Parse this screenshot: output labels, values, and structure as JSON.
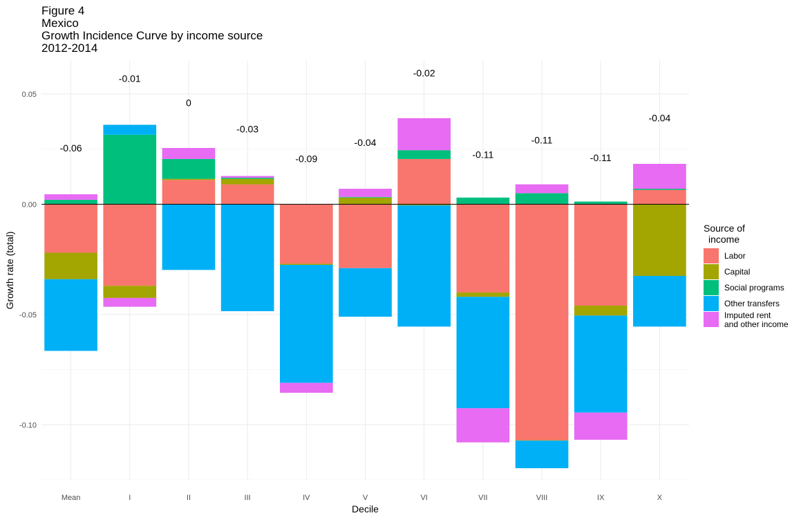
{
  "title_lines": [
    "Figure 4",
    "Mexico",
    "Growth Incidence Curve by income source",
    "2012-2014"
  ],
  "chart_data": {
    "type": "bar",
    "stacked": true,
    "categories": [
      "Mean",
      "I",
      "II",
      "III",
      "IV",
      "V",
      "VI",
      "VII",
      "VIII",
      "IX",
      "X"
    ],
    "xlabel": "Decile",
    "ylabel": "Growth rate (total)",
    "ylim": [
      -0.125,
      0.065
    ],
    "y_ticks": [
      -0.1,
      -0.05,
      0.0,
      0.05
    ],
    "y_tick_labels": [
      "-0.10",
      "-0.05",
      "0.00",
      "0.05"
    ],
    "grid": true,
    "legend": {
      "title": "Source of\nincome",
      "placement": "right"
    },
    "series": [
      {
        "name": "Labor",
        "color": "#F8766D",
        "values": [
          -0.022,
          -0.037,
          0.011,
          0.009,
          -0.027,
          -0.029,
          0.0205,
          -0.04,
          -0.107,
          -0.046,
          0.0065
        ]
      },
      {
        "name": "Capital",
        "color": "#A3A500",
        "values": [
          -0.012,
          -0.0055,
          0.0005,
          0.0025,
          -0.0005,
          0.003,
          -0.0005,
          -0.002,
          -0.0002,
          -0.0045,
          -0.0325
        ]
      },
      {
        "name": "Social programs",
        "color": "#00BF7D",
        "values": [
          0.002,
          0.0315,
          0.009,
          0.0005,
          0.0001,
          0.0003,
          0.004,
          0.003,
          0.005,
          0.0012,
          0.0005
        ]
      },
      {
        "name": "Other transfers",
        "color": "#00B0F6",
        "values": [
          -0.0325,
          0.0045,
          -0.0298,
          -0.0485,
          -0.0535,
          -0.022,
          -0.055,
          -0.0505,
          -0.0125,
          -0.044,
          -0.023
        ]
      },
      {
        "name": "Imputed rent\nand other income",
        "color": "#E76BF3",
        "values": [
          0.0025,
          -0.004,
          0.005,
          0.0008,
          -0.0045,
          0.0037,
          0.0145,
          -0.0155,
          0.004,
          -0.0123,
          0.0113
        ]
      }
    ],
    "totals": [
      "-0.06",
      "-0.01",
      "0",
      "-0.03",
      "-0.09",
      "-0.04",
      "-0.02",
      "-0.11",
      "-0.11",
      "-0.11",
      "-0.04"
    ],
    "total_label_y": [
      0.024,
      0.0555,
      0.0445,
      0.0325,
      0.019,
      0.0265,
      0.058,
      0.021,
      0.0275,
      0.0195,
      0.0375
    ]
  }
}
